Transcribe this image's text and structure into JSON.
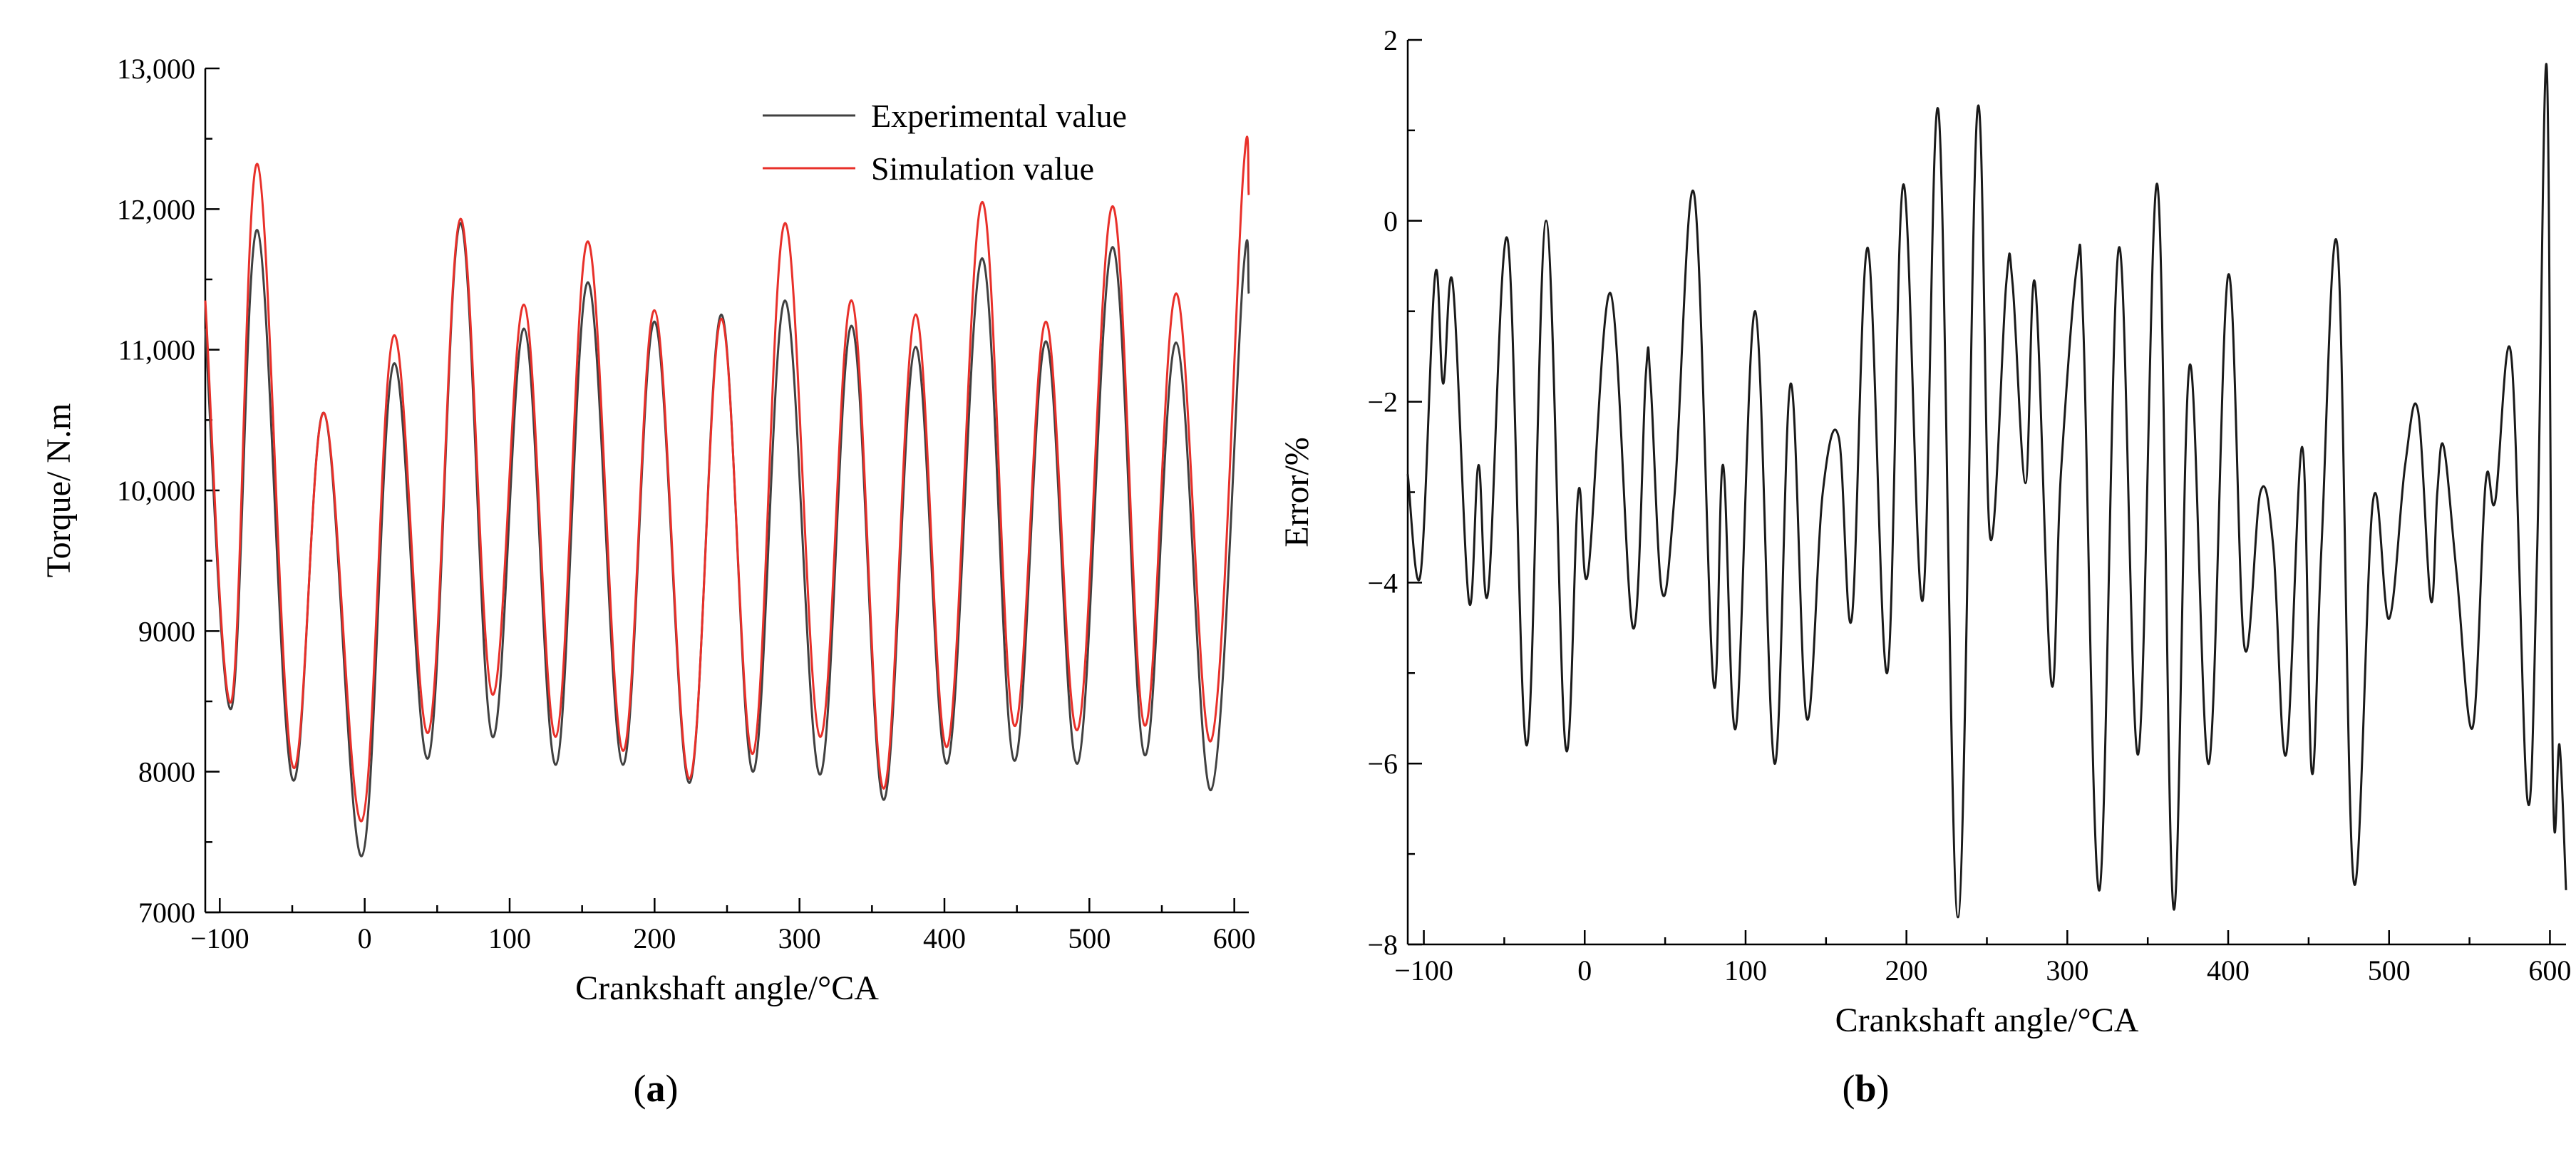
{
  "chart_data": [
    {
      "type": "line",
      "panel_label": "a",
      "xlabel": "Crankshaft angle/°CA",
      "ylabel": "Torque/ N.m",
      "xlim": [
        -110,
        610
      ],
      "ylim": [
        7000,
        13000
      ],
      "x_ticks": [
        -100,
        0,
        100,
        200,
        300,
        400,
        500,
        600
      ],
      "x_tick_labels": [
        "−100",
        "0",
        "100",
        "200",
        "300",
        "400",
        "500",
        "600"
      ],
      "y_ticks": [
        7000,
        8000,
        9000,
        10000,
        11000,
        12000,
        13000
      ],
      "y_tick_labels": [
        "7000",
        "8000",
        "9000",
        "10,000",
        "11,000",
        "12,000",
        "13,000"
      ],
      "grid": false,
      "legend_position": "top-right",
      "series": [
        {
          "name": "Experimental value",
          "color": "#404040",
          "x": [
            -110,
            -92,
            -74,
            -50,
            -28,
            -2,
            20,
            44,
            66,
            88,
            110,
            132,
            154,
            178,
            200,
            224,
            246,
            268,
            290,
            314,
            336,
            358,
            380,
            402,
            426,
            448,
            470,
            492,
            516,
            538,
            560,
            584,
            606,
            610
          ],
          "y": [
            11150,
            8450,
            11850,
            7950,
            10550,
            7400,
            10900,
            8100,
            11900,
            8250,
            11150,
            8050,
            11480,
            8050,
            11200,
            7920,
            11250,
            8000,
            11350,
            7980,
            11170,
            7800,
            11020,
            8060,
            11650,
            8080,
            11060,
            8060,
            11730,
            8120,
            11050,
            7870,
            11520,
            11400
          ]
        },
        {
          "name": "Simulation value",
          "color": "#e8302a",
          "x": [
            -110,
            -92,
            -74,
            -50,
            -28,
            -2,
            20,
            44,
            66,
            88,
            110,
            132,
            154,
            178,
            200,
            224,
            246,
            268,
            290,
            314,
            336,
            358,
            380,
            402,
            426,
            448,
            470,
            492,
            516,
            538,
            560,
            584,
            606,
            610
          ],
          "y": [
            11350,
            8500,
            12320,
            8050,
            10550,
            7650,
            11100,
            8280,
            11930,
            8550,
            11320,
            8250,
            11770,
            8150,
            11280,
            7950,
            11220,
            8130,
            11900,
            8250,
            11350,
            7880,
            11250,
            8180,
            12050,
            8330,
            11200,
            8300,
            12020,
            8330,
            11400,
            8220,
            12230,
            12100
          ]
        }
      ]
    },
    {
      "type": "line",
      "panel_label": "b",
      "xlabel": "Crankshaft angle/°CA",
      "ylabel": "Error/%",
      "xlim": [
        -110,
        610
      ],
      "ylim": [
        -8,
        2
      ],
      "x_ticks": [
        -100,
        0,
        100,
        200,
        300,
        400,
        500,
        600
      ],
      "x_tick_labels": [
        "−100",
        "0",
        "100",
        "200",
        "300",
        "400",
        "500",
        "600"
      ],
      "y_ticks": [
        -8,
        -6,
        -4,
        -2,
        0,
        2
      ],
      "y_tick_labels": [
        "−8",
        "−6",
        "−4",
        "−2",
        "0",
        "2"
      ],
      "grid": false,
      "series": [
        {
          "color": "#1a1a1a",
          "x": [
            -110,
            -102,
            -93,
            -88,
            -82,
            -72,
            -66,
            -60,
            -48,
            -36,
            -24,
            -12,
            -4,
            2,
            16,
            30,
            38,
            41,
            48,
            56,
            68,
            80,
            86,
            94,
            106,
            118,
            128,
            138,
            148,
            158,
            166,
            176,
            188,
            198,
            210,
            220,
            232,
            244,
            252,
            262,
            266,
            274,
            280,
            290,
            296,
            306,
            310,
            320,
            332,
            344,
            356,
            366,
            376,
            388,
            400,
            410,
            420,
            428,
            436,
            446,
            452,
            458,
            468,
            478,
            490,
            500,
            510,
            518,
            526,
            530,
            534,
            542,
            552,
            560,
            566,
            576,
            586,
            592,
            598,
            602,
            606,
            610
          ],
          "y": [
            -2.8,
            -3.9,
            -0.6,
            -1.8,
            -0.7,
            -4.2,
            -2.7,
            -4.1,
            -0.2,
            -5.8,
            0.0,
            -5.8,
            -3.0,
            -3.9,
            -0.8,
            -4.5,
            -1.7,
            -1.8,
            -4.1,
            -3.0,
            0.3,
            -5.1,
            -2.7,
            -5.6,
            -1.0,
            -6.0,
            -1.8,
            -5.5,
            -3.0,
            -2.4,
            -4.4,
            -0.3,
            -5.0,
            0.4,
            -4.2,
            1.2,
            -7.7,
            1.2,
            -3.5,
            -0.7,
            -0.7,
            -2.9,
            -0.7,
            -5.1,
            -2.8,
            -0.5,
            -1.2,
            -7.4,
            -0.3,
            -5.9,
            0.4,
            -7.6,
            -1.6,
            -6.0,
            -0.6,
            -4.7,
            -3.0,
            -3.6,
            -5.9,
            -2.5,
            -6.1,
            -3.6,
            -0.3,
            -7.3,
            -3.1,
            -4.4,
            -2.7,
            -2.1,
            -4.2,
            -3.0,
            -2.5,
            -3.9,
            -5.6,
            -2.9,
            -3.1,
            -1.5,
            -6.4,
            -3.7,
            1.7,
            -6.3,
            -5.8,
            -7.4
          ]
        }
      ]
    }
  ]
}
